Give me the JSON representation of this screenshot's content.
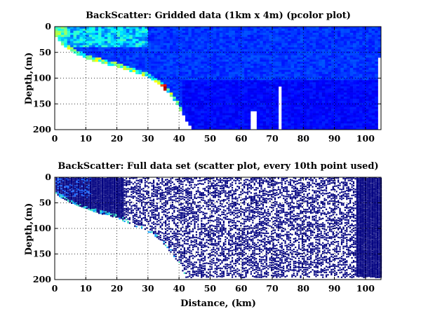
{
  "chart_data": [
    {
      "type": "heatmap",
      "title": "BackScatter: Gridded data (1km x 4m) (pcolor plot)",
      "xlabel": "",
      "ylabel": "Depth,(m)",
      "xlim": [
        0,
        105
      ],
      "ylim": [
        200,
        0
      ],
      "y_reversed": true,
      "grid": "dotted",
      "cell_size_km": 1,
      "cell_size_m": 4,
      "xticks": [
        "0",
        "10",
        "20",
        "30",
        "40",
        "50",
        "60",
        "70",
        "80",
        "90",
        "100"
      ],
      "yticks": [
        "0",
        "50",
        "100",
        "150",
        "200"
      ],
      "colormap": "jet",
      "seafloor_profile": {
        "x_km": [
          0,
          1,
          2,
          4,
          6,
          8,
          10,
          12,
          14,
          16,
          18,
          20,
          22,
          24,
          26,
          28,
          30,
          32,
          34,
          36,
          38,
          39,
          40,
          41,
          42,
          43,
          44
        ],
        "depth_m": [
          15,
          25,
          35,
          45,
          52,
          58,
          63,
          67,
          71,
          74,
          77,
          80,
          83,
          87,
          91,
          96,
          101,
          108,
          117,
          128,
          140,
          150,
          160,
          170,
          180,
          190,
          200
        ]
      },
      "hotspot": {
        "x_km": [
          33,
          36
        ],
        "depth_m": [
          110,
          128
        ],
        "level": "high"
      },
      "gaps": [
        {
          "x_km": [
            63.5,
            64.8
          ],
          "depth_m": [
            165,
            200
          ]
        },
        {
          "x_km": [
            72.5,
            73.5
          ],
          "depth_m": [
            115,
            200
          ]
        },
        {
          "x_km": [
            104,
            105
          ],
          "depth_m": [
            58,
            200
          ]
        }
      ],
      "high_near_surface_band": {
        "x_km": [
          0,
          30
        ],
        "depth_m": [
          0,
          40
        ]
      }
    },
    {
      "type": "scatter",
      "title": "BackScatter: Full data set (scatter plot, every 10th point used)",
      "xlabel": "Distance, (km)",
      "ylabel": "Depth,(m)",
      "xlim": [
        0,
        105
      ],
      "ylim": [
        200,
        0
      ],
      "y_reversed": true,
      "grid": "dotted",
      "sampling": "every 10th point",
      "xticks": [
        "0",
        "10",
        "20",
        "30",
        "40",
        "50",
        "60",
        "70",
        "80",
        "90",
        "100"
      ],
      "yticks": [
        "0",
        "50",
        "100",
        "150",
        "200"
      ],
      "seafloor_profile": {
        "x_km": [
          0,
          2,
          4,
          6,
          8,
          10,
          12,
          14,
          16,
          18,
          20,
          22,
          24,
          26,
          28,
          30,
          32,
          34,
          36,
          38,
          40,
          41,
          42
        ],
        "depth_m": [
          30,
          40,
          47,
          53,
          58,
          62,
          66,
          70,
          73,
          76,
          79,
          85,
          91,
          97,
          102,
          107,
          115,
          125,
          138,
          152,
          168,
          180,
          195
        ]
      },
      "dominant_color": "#000080"
    }
  ]
}
